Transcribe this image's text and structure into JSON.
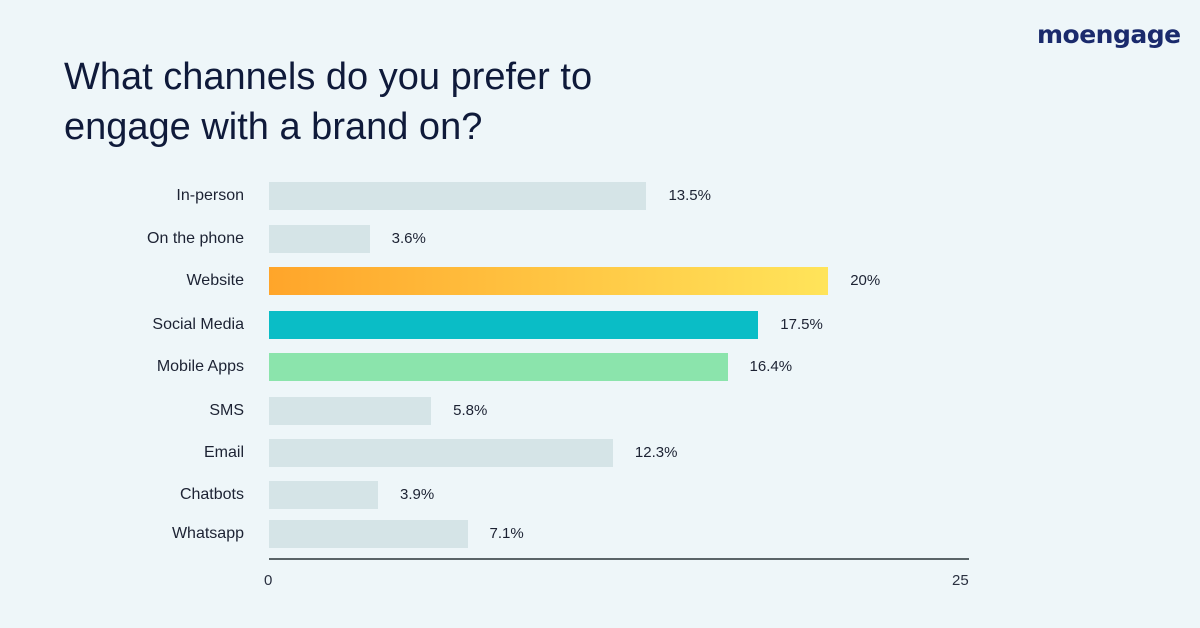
{
  "brand": {
    "logo_text": "moengage"
  },
  "title_line1": "What channels do you prefer to",
  "title_line2": "engage with a brand on?",
  "chart_data": {
    "type": "bar",
    "orientation": "horizontal",
    "title": "What channels do you prefer to engage with a brand on?",
    "xlabel": "",
    "ylabel": "",
    "xlim": [
      0,
      25
    ],
    "x_ticks": [
      "0",
      "25"
    ],
    "grid": false,
    "legend": null,
    "categories": [
      "In-person",
      "On the phone",
      "Website",
      "Social Media",
      "Mobile Apps",
      "SMS",
      "Email",
      "Chatbots",
      "Whatsapp"
    ],
    "values": [
      13.5,
      3.6,
      20,
      17.5,
      16.4,
      5.8,
      12.3,
      3.9,
      7.1
    ],
    "value_labels": [
      "13.5%",
      "3.6%",
      "20%",
      "17.5%",
      "16.4%",
      "5.8%",
      "12.3%",
      "3.9%",
      "7.1%"
    ],
    "colors": [
      "#d5e4e7",
      "#d5e4e7",
      "gradient:#ffa52a->#ffe45a",
      "#0abdc6",
      "#8be4ac",
      "#d5e4e7",
      "#d5e4e7",
      "#d5e4e7",
      "#d5e4e7"
    ]
  }
}
